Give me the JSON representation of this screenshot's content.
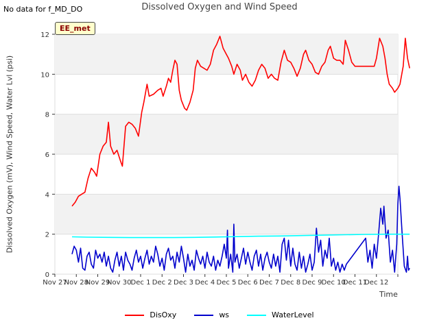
{
  "header": {
    "nodata": "No data for f_MD_DO"
  },
  "badge": "EE_met",
  "chart_data": {
    "type": "line",
    "title": "Dissolved Oxygen and Wind Speed",
    "xlabel": "Time",
    "ylabel": "Dissolved Oxygen (mV), Wind Speed, Water Lvl (psi)",
    "xlim": [
      0,
      16
    ],
    "ylim": [
      0,
      12
    ],
    "x_ticks": [
      0,
      1,
      2,
      3,
      4,
      5,
      6,
      7,
      8,
      9,
      10,
      11,
      12,
      13,
      14,
      15,
      16
    ],
    "x_tick_labels": [
      "Nov 27",
      "Nov 28",
      "Nov 29",
      "Nov 30",
      "Dec 1",
      "Dec 2",
      "Dec 3",
      "Dec 4",
      "Dec 5",
      "Dec 6",
      "Dec 7",
      "Dec 8",
      "Dec 9",
      "Dec 10",
      "Dec 11",
      "Dec 12"
    ],
    "x_tick_label_positions": [
      0,
      1,
      2,
      3,
      4,
      5,
      6,
      7,
      8,
      9,
      10,
      11,
      12,
      13,
      14,
      15
    ],
    "y_ticks": [
      0,
      2,
      4,
      6,
      8,
      10,
      12
    ],
    "grid": "horizontal bands",
    "legend_position": "bottom",
    "series": [
      {
        "name": "DisOxy",
        "color": "#ff0000",
        "points": [
          [
            0.8,
            3.4
          ],
          [
            0.95,
            3.6
          ],
          [
            1.1,
            3.9
          ],
          [
            1.25,
            4.0
          ],
          [
            1.4,
            4.1
          ],
          [
            1.55,
            4.8
          ],
          [
            1.7,
            5.3
          ],
          [
            1.85,
            5.1
          ],
          [
            1.95,
            4.9
          ],
          [
            2.1,
            6.0
          ],
          [
            2.25,
            6.4
          ],
          [
            2.4,
            6.6
          ],
          [
            2.5,
            7.6
          ],
          [
            2.6,
            6.4
          ],
          [
            2.75,
            6.0
          ],
          [
            2.9,
            6.2
          ],
          [
            3.05,
            5.7
          ],
          [
            3.15,
            5.4
          ],
          [
            3.3,
            7.4
          ],
          [
            3.45,
            7.6
          ],
          [
            3.6,
            7.5
          ],
          [
            3.75,
            7.3
          ],
          [
            3.9,
            6.9
          ],
          [
            4.05,
            8.1
          ],
          [
            4.15,
            8.6
          ],
          [
            4.3,
            9.5
          ],
          [
            4.4,
            8.9
          ],
          [
            4.6,
            9.0
          ],
          [
            4.8,
            9.2
          ],
          [
            4.95,
            9.3
          ],
          [
            5.05,
            8.9
          ],
          [
            5.2,
            9.4
          ],
          [
            5.3,
            9.8
          ],
          [
            5.4,
            9.6
          ],
          [
            5.5,
            10.2
          ],
          [
            5.6,
            10.7
          ],
          [
            5.7,
            10.5
          ],
          [
            5.8,
            9.2
          ],
          [
            5.9,
            8.7
          ],
          [
            6.05,
            8.3
          ],
          [
            6.15,
            8.2
          ],
          [
            6.3,
            8.6
          ],
          [
            6.45,
            9.2
          ],
          [
            6.55,
            10.3
          ],
          [
            6.65,
            10.7
          ],
          [
            6.8,
            10.4
          ],
          [
            6.95,
            10.3
          ],
          [
            7.1,
            10.2
          ],
          [
            7.25,
            10.5
          ],
          [
            7.4,
            11.2
          ],
          [
            7.55,
            11.5
          ],
          [
            7.7,
            11.9
          ],
          [
            7.85,
            11.3
          ],
          [
            8.0,
            11.0
          ],
          [
            8.1,
            10.8
          ],
          [
            8.25,
            10.4
          ],
          [
            8.35,
            10.0
          ],
          [
            8.5,
            10.5
          ],
          [
            8.65,
            10.2
          ],
          [
            8.75,
            9.7
          ],
          [
            8.9,
            10.0
          ],
          [
            9.05,
            9.6
          ],
          [
            9.2,
            9.4
          ],
          [
            9.35,
            9.7
          ],
          [
            9.5,
            10.2
          ],
          [
            9.65,
            10.5
          ],
          [
            9.8,
            10.3
          ],
          [
            9.95,
            9.8
          ],
          [
            10.1,
            10.0
          ],
          [
            10.25,
            9.8
          ],
          [
            10.4,
            9.7
          ],
          [
            10.55,
            10.6
          ],
          [
            10.7,
            11.2
          ],
          [
            10.85,
            10.7
          ],
          [
            11.0,
            10.6
          ],
          [
            11.15,
            10.3
          ],
          [
            11.3,
            9.9
          ],
          [
            11.45,
            10.3
          ],
          [
            11.6,
            11.0
          ],
          [
            11.7,
            11.2
          ],
          [
            11.85,
            10.7
          ],
          [
            12.0,
            10.5
          ],
          [
            12.15,
            10.1
          ],
          [
            12.3,
            10.0
          ],
          [
            12.45,
            10.4
          ],
          [
            12.6,
            10.6
          ],
          [
            12.75,
            11.2
          ],
          [
            12.85,
            11.4
          ],
          [
            13.0,
            10.8
          ],
          [
            13.15,
            10.7
          ],
          [
            13.3,
            10.7
          ],
          [
            13.45,
            10.5
          ],
          [
            13.55,
            11.7
          ],
          [
            13.7,
            11.2
          ],
          [
            13.85,
            10.6
          ],
          [
            14.0,
            10.4
          ],
          [
            14.9,
            10.4
          ],
          [
            15.0,
            10.8
          ],
          [
            15.15,
            11.8
          ],
          [
            15.3,
            11.4
          ],
          [
            15.4,
            10.8
          ],
          [
            15.5,
            10.0
          ],
          [
            15.6,
            9.5
          ],
          [
            15.75,
            9.3
          ],
          [
            15.85,
            9.1
          ],
          [
            16.0,
            9.3
          ],
          [
            16.1,
            9.5
          ],
          [
            16.25,
            10.4
          ],
          [
            16.35,
            11.8
          ],
          [
            16.45,
            10.8
          ],
          [
            16.55,
            10.3
          ]
        ]
      },
      {
        "name": "ws",
        "color": "#0000cc",
        "points": [
          [
            0.8,
            1.0
          ],
          [
            0.9,
            1.4
          ],
          [
            1.0,
            1.2
          ],
          [
            1.1,
            0.6
          ],
          [
            1.2,
            1.3
          ],
          [
            1.3,
            0.3
          ],
          [
            1.4,
            0.2
          ],
          [
            1.5,
            0.9
          ],
          [
            1.6,
            1.1
          ],
          [
            1.7,
            0.5
          ],
          [
            1.8,
            0.3
          ],
          [
            1.9,
            1.2
          ],
          [
            2.0,
            0.8
          ],
          [
            2.1,
            1.0
          ],
          [
            2.2,
            0.6
          ],
          [
            2.3,
            1.1
          ],
          [
            2.4,
            0.4
          ],
          [
            2.5,
            0.9
          ],
          [
            2.6,
            0.3
          ],
          [
            2.7,
            0.1
          ],
          [
            2.8,
            0.7
          ],
          [
            2.9,
            1.1
          ],
          [
            3.0,
            0.4
          ],
          [
            3.1,
            0.9
          ],
          [
            3.2,
            0.2
          ],
          [
            3.3,
            1.1
          ],
          [
            3.4,
            0.7
          ],
          [
            3.5,
            0.5
          ],
          [
            3.6,
            0.2
          ],
          [
            3.7,
            0.8
          ],
          [
            3.8,
            1.2
          ],
          [
            3.9,
            0.6
          ],
          [
            4.0,
            0.9
          ],
          [
            4.1,
            0.3
          ],
          [
            4.2,
            0.8
          ],
          [
            4.3,
            1.2
          ],
          [
            4.4,
            0.5
          ],
          [
            4.5,
            0.9
          ],
          [
            4.6,
            0.6
          ],
          [
            4.7,
            1.4
          ],
          [
            4.8,
            1.0
          ],
          [
            4.9,
            0.4
          ],
          [
            5.0,
            0.8
          ],
          [
            5.1,
            0.2
          ],
          [
            5.2,
            1.0
          ],
          [
            5.3,
            1.3
          ],
          [
            5.4,
            0.7
          ],
          [
            5.5,
            0.9
          ],
          [
            5.6,
            0.3
          ],
          [
            5.7,
            1.1
          ],
          [
            5.8,
            0.6
          ],
          [
            5.9,
            1.4
          ],
          [
            6.0,
            0.8
          ],
          [
            6.1,
            0.1
          ],
          [
            6.2,
            1.0
          ],
          [
            6.3,
            0.4
          ],
          [
            6.4,
            0.7
          ],
          [
            6.5,
            0.2
          ],
          [
            6.6,
            1.2
          ],
          [
            6.7,
            0.8
          ],
          [
            6.8,
            0.5
          ],
          [
            6.9,
            0.9
          ],
          [
            7.0,
            0.3
          ],
          [
            7.1,
            1.1
          ],
          [
            7.2,
            0.6
          ],
          [
            7.3,
            0.4
          ],
          [
            7.4,
            0.9
          ],
          [
            7.5,
            0.2
          ],
          [
            7.6,
            0.7
          ],
          [
            7.7,
            0.4
          ],
          [
            7.8,
            0.9
          ],
          [
            7.9,
            1.5
          ],
          [
            8.0,
            0.8
          ],
          [
            8.05,
            2.2
          ],
          [
            8.1,
            0.3
          ],
          [
            8.2,
            1.0
          ],
          [
            8.3,
            0.1
          ],
          [
            8.35,
            2.5
          ],
          [
            8.4,
            0.6
          ],
          [
            8.5,
            1.0
          ],
          [
            8.6,
            0.3
          ],
          [
            8.7,
            0.8
          ],
          [
            8.8,
            1.3
          ],
          [
            8.9,
            0.5
          ],
          [
            9.0,
            1.1
          ],
          [
            9.1,
            0.6
          ],
          [
            9.2,
            0.2
          ],
          [
            9.3,
            0.9
          ],
          [
            9.4,
            1.2
          ],
          [
            9.5,
            0.4
          ],
          [
            9.6,
            1.0
          ],
          [
            9.7,
            0.2
          ],
          [
            9.8,
            0.8
          ],
          [
            9.9,
            1.1
          ],
          [
            10.0,
            0.6
          ],
          [
            10.1,
            0.3
          ],
          [
            10.2,
            1.0
          ],
          [
            10.3,
            0.4
          ],
          [
            10.4,
            0.9
          ],
          [
            10.5,
            0.1
          ],
          [
            10.6,
            1.5
          ],
          [
            10.7,
            1.8
          ],
          [
            10.8,
            0.7
          ],
          [
            10.9,
            1.7
          ],
          [
            11.0,
            0.4
          ],
          [
            11.1,
            1.3
          ],
          [
            11.2,
            0.5
          ],
          [
            11.3,
            0.2
          ],
          [
            11.4,
            1.1
          ],
          [
            11.5,
            0.3
          ],
          [
            11.6,
            0.9
          ],
          [
            11.7,
            0.1
          ],
          [
            11.8,
            0.5
          ],
          [
            11.9,
            1.0
          ],
          [
            12.0,
            0.2
          ],
          [
            12.1,
            0.6
          ],
          [
            12.2,
            2.3
          ],
          [
            12.3,
            1.1
          ],
          [
            12.4,
            1.7
          ],
          [
            12.5,
            0.4
          ],
          [
            12.6,
            1.2
          ],
          [
            12.7,
            0.8
          ],
          [
            12.8,
            1.8
          ],
          [
            12.9,
            0.4
          ],
          [
            13.0,
            0.8
          ],
          [
            13.1,
            0.2
          ],
          [
            13.2,
            0.6
          ],
          [
            13.3,
            0.1
          ],
          [
            13.4,
            0.5
          ],
          [
            13.5,
            0.2
          ],
          [
            13.6,
            0.5
          ],
          [
            14.5,
            1.8
          ],
          [
            14.6,
            0.6
          ],
          [
            14.7,
            1.2
          ],
          [
            14.8,
            0.3
          ],
          [
            14.9,
            1.5
          ],
          [
            15.0,
            0.8
          ],
          [
            15.1,
            2.0
          ],
          [
            15.2,
            3.3
          ],
          [
            15.3,
            2.5
          ],
          [
            15.35,
            3.4
          ],
          [
            15.45,
            1.8
          ],
          [
            15.55,
            2.2
          ],
          [
            15.65,
            0.6
          ],
          [
            15.75,
            1.2
          ],
          [
            15.85,
            0.1
          ],
          [
            15.95,
            1.5
          ],
          [
            16.0,
            3.5
          ],
          [
            16.05,
            4.4
          ],
          [
            16.1,
            3.8
          ],
          [
            16.2,
            2.0
          ],
          [
            16.3,
            0.4
          ],
          [
            16.4,
            0.1
          ],
          [
            16.45,
            0.9
          ],
          [
            16.5,
            0.2
          ],
          [
            16.55,
            0.3
          ]
        ]
      },
      {
        "name": "WaterLevel",
        "color": "#00ffff",
        "points": [
          [
            0.8,
            1.87
          ],
          [
            1.5,
            1.85
          ],
          [
            2.5,
            1.84
          ],
          [
            3.5,
            1.83
          ],
          [
            4.5,
            1.83
          ],
          [
            5.5,
            1.83
          ],
          [
            6.5,
            1.84
          ],
          [
            7.5,
            1.86
          ],
          [
            8.5,
            1.88
          ],
          [
            9.5,
            1.9
          ],
          [
            10.5,
            1.91
          ],
          [
            11.5,
            1.93
          ],
          [
            12.5,
            1.95
          ],
          [
            13.5,
            1.97
          ],
          [
            14.5,
            1.99
          ],
          [
            15.5,
            2.0
          ],
          [
            16.55,
            2.0
          ]
        ]
      }
    ]
  }
}
